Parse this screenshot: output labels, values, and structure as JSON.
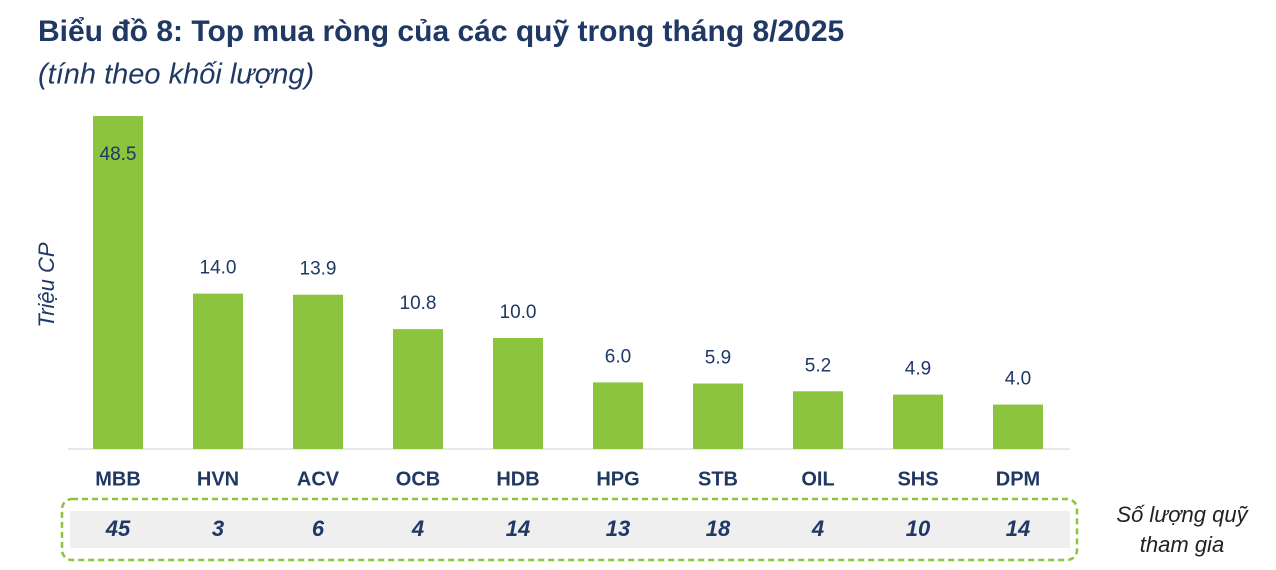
{
  "chart_data": {
    "type": "bar",
    "title": "Biểu đồ 8: Top mua ròng của các quỹ trong tháng 8/2025",
    "subtitle": "(tính theo khối lượng)",
    "y_label": "Triệu CP",
    "categories": [
      "MBB",
      "HVN",
      "ACV",
      "OCB",
      "HDB",
      "HPG",
      "STB",
      "OIL",
      "SHS",
      "DPM"
    ],
    "values": [
      48.5,
      14.0,
      13.9,
      10.8,
      10.0,
      6.0,
      5.9,
      5.2,
      4.9,
      4.0
    ],
    "value_labels": [
      "48.5",
      "14.0",
      "13.9",
      "10.8",
      "10.0",
      "6.0",
      "5.9",
      "5.2",
      "4.9",
      "4.0"
    ],
    "color": "#8cc43f",
    "ylim": [
      0,
      30
    ],
    "fund_counts_label": "Số lượng quỹ tham gia",
    "fund_counts": [
      45,
      3,
      6,
      4,
      14,
      13,
      18,
      4,
      10,
      14
    ]
  }
}
